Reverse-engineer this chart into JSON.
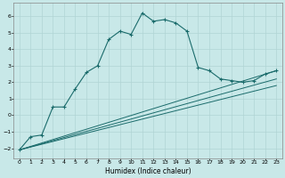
{
  "xlabel": "Humidex (Indice chaleur)",
  "background_color": "#c8e8e8",
  "grid_color": "#b0d4d4",
  "line_color": "#1a6b6b",
  "xlim": [
    -0.5,
    23.5
  ],
  "ylim": [
    -2.6,
    6.8
  ],
  "xticks": [
    0,
    1,
    2,
    3,
    4,
    5,
    6,
    7,
    8,
    9,
    10,
    11,
    12,
    13,
    14,
    15,
    16,
    17,
    18,
    19,
    20,
    21,
    22,
    23
  ],
  "yticks": [
    -2,
    -1,
    0,
    1,
    2,
    3,
    4,
    5,
    6
  ],
  "curve1_x": [
    0,
    1,
    2,
    3,
    4,
    5,
    6,
    7,
    8,
    9,
    10,
    11,
    12,
    13,
    14,
    15,
    16,
    17,
    18,
    19,
    20,
    21,
    22,
    23
  ],
  "curve1_y": [
    -2.1,
    -1.3,
    -1.2,
    0.5,
    0.5,
    1.6,
    2.6,
    3.0,
    4.6,
    5.1,
    4.9,
    6.2,
    5.7,
    5.8,
    5.6,
    5.1,
    2.9,
    2.7,
    2.2,
    2.1,
    2.0,
    2.1,
    2.5,
    2.7
  ],
  "line1_x": [
    0,
    23
  ],
  "line1_y": [
    -2.1,
    2.7
  ],
  "line2_x": [
    0,
    23
  ],
  "line2_y": [
    -2.1,
    2.2
  ],
  "line3_x": [
    0,
    23
  ],
  "line3_y": [
    -2.1,
    1.8
  ]
}
